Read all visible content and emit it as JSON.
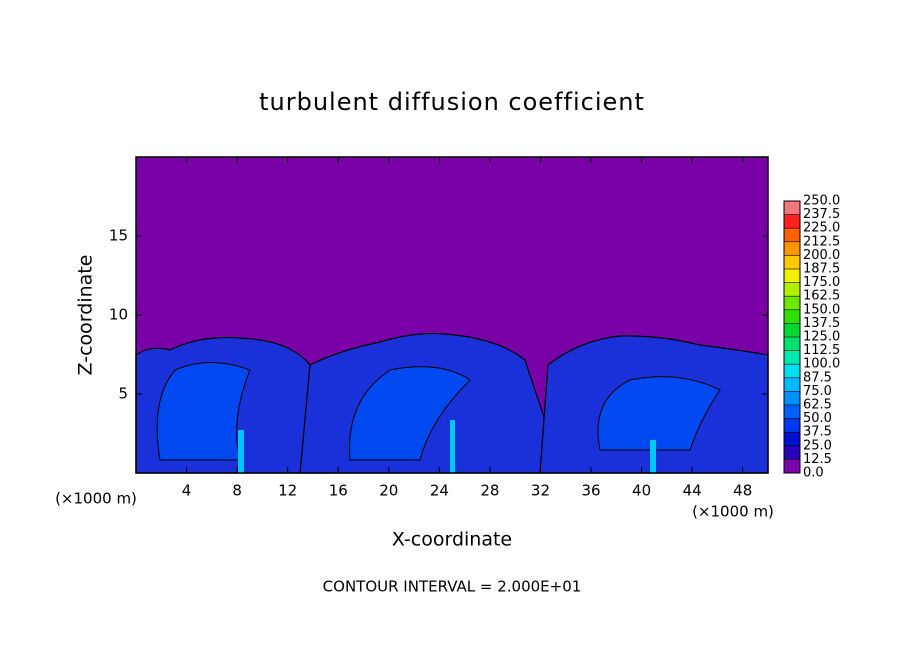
{
  "chart_data": {
    "type": "contour",
    "title": "turbulent diffusion coefficient",
    "x_label": "X-coordinate",
    "y_label": "Z-coordinate",
    "x_unit": "(×1000 m)",
    "footer": "CONTOUR INTERVAL = 2.000E+01",
    "xlim": [
      0,
      50
    ],
    "xticks": [
      4,
      8,
      12,
      16,
      20,
      24,
      28,
      32,
      36,
      40,
      44,
      48
    ],
    "ylim": [
      0,
      20
    ],
    "yticks": [
      5,
      10,
      15
    ],
    "background_color": "#7a00a8",
    "colorbar": {
      "ticks": [
        {
          "value": 0,
          "label": "0.0"
        },
        12.5,
        {
          "value": 25,
          "label": "25.0"
        },
        37.5,
        {
          "value": 50,
          "label": "50.0"
        },
        62.5,
        {
          "value": 75,
          "label": "75.0"
        },
        87.5,
        {
          "value": 100,
          "label": "100.0"
        },
        112.5,
        {
          "value": 125,
          "label": "125.0"
        },
        137.5,
        {
          "value": 150,
          "label": "150.0"
        },
        162.5,
        {
          "value": 175,
          "label": "175.0"
        },
        187.5,
        {
          "value": 200,
          "label": "200.0"
        },
        212.5,
        {
          "value": 225,
          "label": "225.0"
        },
        237.5,
        {
          "value": 250,
          "label": "250.0"
        }
      ],
      "colors": [
        "#7a00a8",
        "#2800b8",
        "#0010d0",
        "#0038f0",
        "#0060ff",
        "#0090ff",
        "#00b8ff",
        "#00e0f0",
        "#00e8b0",
        "#00e070",
        "#00d830",
        "#30e000",
        "#70e800",
        "#b0f000",
        "#f0f000",
        "#ffc800",
        "#ff9600",
        "#ff6000",
        "#ff2020",
        "#f07878"
      ]
    }
  }
}
